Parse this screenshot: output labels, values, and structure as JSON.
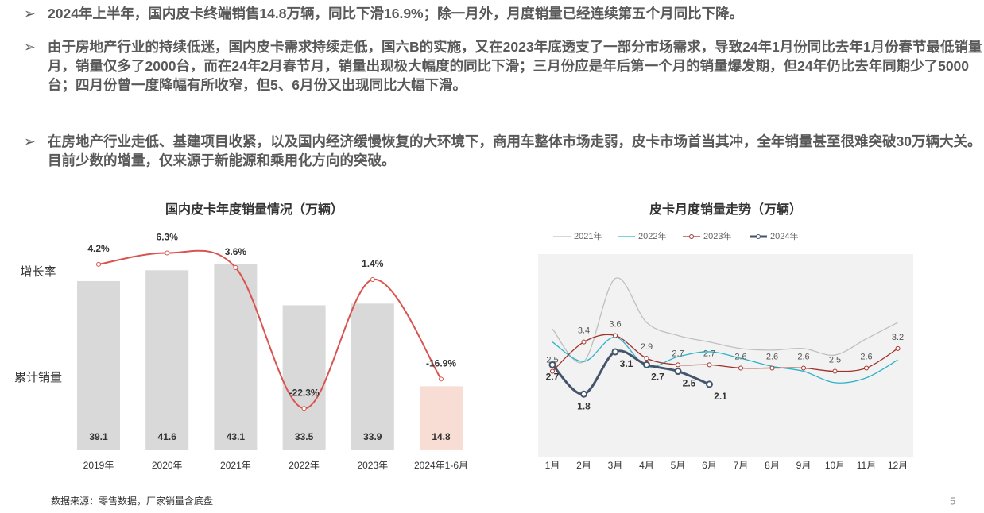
{
  "bullets": [
    "2024年上半年，国内皮卡终端销售14.8万辆，同比下滑16.9%；除一月外，月度销量已经连续第五个月同比下降。",
    "由于房地产行业的持续低迷，国内皮卡需求持续走低，国六B的实施，又在2023年底透支了一部分市场需求，导致24年1月份同比去年1月份春节最低销量月，销量仅多了2000台，而在24年2月春节月，销量出现极大幅度的同比下滑；三月份应是年后第一个月的销量爆发期，但24年仍比去年同期少了5000台；四月份曾一度降幅有所收窄，但5、6月份又出现同比大幅下滑。",
    "在房地产行业走低、基建项目收紧，以及国内经济缓慢恢复的大环境下，商用车整体市场走弱，皮卡市场首当其冲，全年销量甚至很难突破30万辆大关。目前少数的增量，仅来源于新能源和乘用化方向的突破。"
  ],
  "source": "数据来源：零售数据，厂家销量含底盘",
  "page_number": "5",
  "chart_data": [
    {
      "type": "bar-line",
      "title": "国内皮卡年度销量情况（万辆）",
      "categories": [
        "2019年",
        "2020年",
        "2021年",
        "2022年",
        "2023年",
        "2024年1-6月"
      ],
      "series": [
        {
          "name": "累计销量",
          "type": "bar",
          "colors": [
            "#d9d9d9",
            "#d9d9d9",
            "#d9d9d9",
            "#d9d9d9",
            "#d9d9d9",
            "#f8ddd5"
          ],
          "values": [
            39.1,
            41.6,
            43.1,
            33.5,
            33.9,
            14.8
          ]
        },
        {
          "name": "增长率",
          "type": "line",
          "axis": "y2",
          "color": "#d9534f",
          "values": [
            4.2,
            6.3,
            3.6,
            -22.3,
            1.4,
            -16.9
          ],
          "value_labels": [
            "4.2%",
            "6.3%",
            "3.6%",
            "-22.3%",
            "1.4%",
            "-16.9%"
          ]
        }
      ],
      "ylim": [
        0,
        49
      ],
      "y2lim": [
        -30,
        9
      ]
    },
    {
      "type": "line",
      "title": "皮卡月度销量走势（万辆）",
      "categories": [
        "1月",
        "2月",
        "3月",
        "4月",
        "5月",
        "6月",
        "7月",
        "8月",
        "9月",
        "10月",
        "11月",
        "12月"
      ],
      "series": [
        {
          "name": "2021年",
          "color": "#bfbfbf",
          "values": [
            3.8,
            2.8,
            5.35,
            4.0,
            3.6,
            3.4,
            3.2,
            3.15,
            3.2,
            3.0,
            3.5,
            4.0
          ]
        },
        {
          "name": "2022年",
          "color": "#2bb3c8",
          "values": [
            3.4,
            2.8,
            3.55,
            2.65,
            2.95,
            3.1,
            2.9,
            2.65,
            2.5,
            2.15,
            2.3,
            2.85
          ]
        },
        {
          "name": "2023年",
          "color": "#a0312b",
          "marker": true,
          "labels": true,
          "values": [
            2.5,
            3.4,
            3.6,
            2.9,
            2.7,
            2.7,
            2.6,
            2.6,
            2.6,
            2.5,
            2.6,
            3.2
          ]
        },
        {
          "name": "2024年",
          "color": "#44546a",
          "marker": true,
          "labels": true,
          "bold": true,
          "values": [
            2.7,
            1.8,
            3.1,
            2.7,
            2.5,
            2.1,
            null,
            null,
            null,
            null,
            null,
            null
          ]
        }
      ],
      "ylim": [
        0,
        6.1
      ],
      "legend": "top"
    }
  ]
}
